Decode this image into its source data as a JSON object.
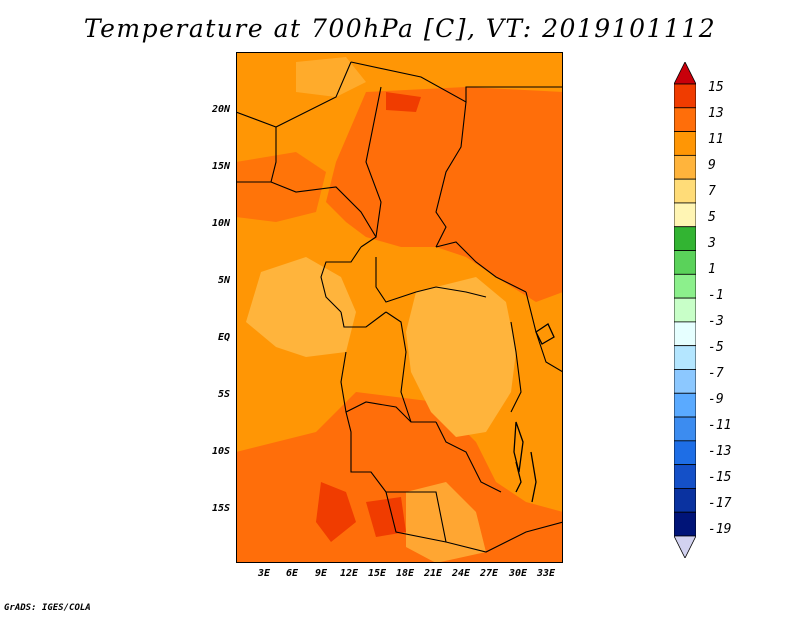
{
  "title": "Temperature at 700hPa [C], VT: 2019101112",
  "credit": "GrADS: IGES/COLA",
  "map": {
    "lat_ticks": [
      "20N",
      "15N",
      "10N",
      "5N",
      "EQ",
      "5S",
      "10S",
      "15S"
    ],
    "lon_ticks": [
      "3E",
      "6E",
      "9E",
      "12E",
      "15E",
      "18E",
      "21E",
      "24E",
      "27E",
      "30E",
      "33E"
    ]
  },
  "colorbar": {
    "labels": [
      "15",
      "13",
      "11",
      "9",
      "7",
      "5",
      "3",
      "1",
      "-1",
      "-3",
      "-5",
      "-7",
      "-9",
      "-11",
      "-13",
      "-15",
      "-17",
      "-19"
    ],
    "colors": [
      "#c8000a",
      "#f03c00",
      "#ff6e0a",
      "#ff9605",
      "#ffb43c",
      "#ffdc78",
      "#fff5b4",
      "#32b432",
      "#5ad25a",
      "#8cf08c",
      "#c8ffc8",
      "#e6ffff",
      "#b4e6ff",
      "#8cc8ff",
      "#5aaaff",
      "#3c8cf0",
      "#1e6ee6",
      "#1450c8",
      "#0a32a0",
      "#001478",
      "#d2d2f0"
    ]
  }
}
